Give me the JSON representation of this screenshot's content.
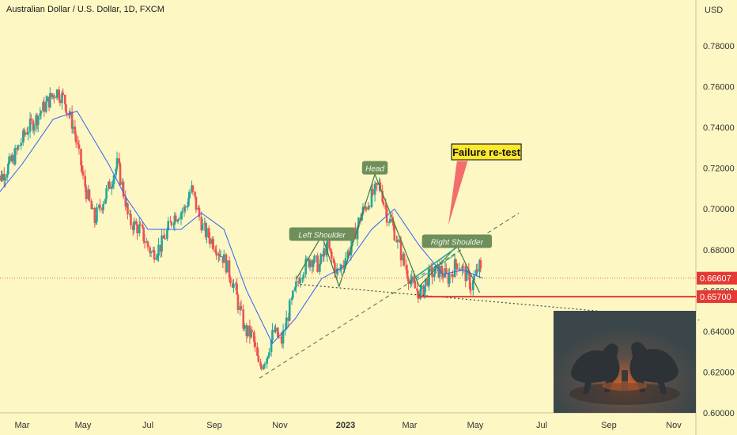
{
  "chart_title": "Australian Dollar / U.S. Dollar, 1D, FXCM",
  "currency_label": "USD",
  "chart_data": {
    "type": "candlestick",
    "title": "Australian Dollar / U.S. Dollar, 1D, FXCM",
    "ylabel": "USD",
    "ylim": [
      0.6,
      0.8
    ],
    "y_ticks": [
      "0.78000",
      "0.76000",
      "0.74000",
      "0.72000",
      "0.70000",
      "0.68000",
      "0.66000",
      "0.64000",
      "0.62000",
      "0.60000"
    ],
    "x_ticks": [
      "Mar",
      "May",
      "Jul",
      "Sep",
      "Nov",
      "2023",
      "Mar",
      "May",
      "Jul",
      "Sep",
      "Nov"
    ],
    "bold_x_tick": "2023",
    "x_tick_dates": [
      "2022-03-01",
      "2022-05-01",
      "2022-07-01",
      "2022-09-01",
      "2022-11-01",
      "2023-01-01",
      "2023-03-01",
      "2023-05-01",
      "2023-07-01",
      "2023-09-01",
      "2023-11-01"
    ],
    "price_path": [
      [
        "2022-02-01",
        0.712
      ],
      [
        "2022-02-12",
        0.718
      ],
      [
        "2022-02-22",
        0.726
      ],
      [
        "2022-03-05",
        0.738
      ],
      [
        "2022-03-15",
        0.744
      ],
      [
        "2022-03-26",
        0.752
      ],
      [
        "2022-04-05",
        0.758
      ],
      [
        "2022-04-12",
        0.754
      ],
      [
        "2022-04-22",
        0.74
      ],
      [
        "2022-05-02",
        0.714
      ],
      [
        "2022-05-12",
        0.694
      ],
      [
        "2022-05-22",
        0.706
      ],
      [
        "2022-06-03",
        0.722
      ],
      [
        "2022-06-14",
        0.694
      ],
      [
        "2022-06-24",
        0.69
      ],
      [
        "2022-07-05",
        0.678
      ],
      [
        "2022-07-14",
        0.682
      ],
      [
        "2022-07-25",
        0.696
      ],
      [
        "2022-08-05",
        0.7
      ],
      [
        "2022-08-11",
        0.71
      ],
      [
        "2022-08-22",
        0.69
      ],
      [
        "2022-08-31",
        0.684
      ],
      [
        "2022-09-10",
        0.676
      ],
      [
        "2022-09-20",
        0.662
      ],
      [
        "2022-09-30",
        0.64
      ],
      [
        "2022-10-07",
        0.638
      ],
      [
        "2022-10-13",
        0.622
      ],
      [
        "2022-10-20",
        0.628
      ],
      [
        "2022-10-27",
        0.64
      ],
      [
        "2022-11-03",
        0.634
      ],
      [
        "2022-11-10",
        0.65
      ],
      [
        "2022-11-20",
        0.668
      ],
      [
        "2022-11-30",
        0.676
      ],
      [
        "2022-12-08",
        0.672
      ],
      [
        "2022-12-15",
        0.682
      ],
      [
        "2022-12-25",
        0.668
      ],
      [
        "2023-01-05",
        0.68
      ],
      [
        "2023-01-15",
        0.696
      ],
      [
        "2023-01-25",
        0.706
      ],
      [
        "2023-02-02",
        0.712
      ],
      [
        "2023-02-08",
        0.698
      ],
      [
        "2023-02-15",
        0.69
      ],
      [
        "2023-02-25",
        0.672
      ],
      [
        "2023-03-05",
        0.662
      ],
      [
        "2023-03-12",
        0.658
      ],
      [
        "2023-03-20",
        0.668
      ],
      [
        "2023-03-30",
        0.67
      ],
      [
        "2023-04-06",
        0.666
      ],
      [
        "2023-04-14",
        0.674
      ],
      [
        "2023-04-20",
        0.67
      ],
      [
        "2023-04-28",
        0.662
      ],
      [
        "2023-05-05",
        0.672
      ],
      [
        "2023-05-08",
        0.666
      ]
    ],
    "moving_average": [
      [
        "2022-02-01",
        0.705
      ],
      [
        "2022-03-01",
        0.722
      ],
      [
        "2022-04-01",
        0.744
      ],
      [
        "2022-04-25",
        0.748
      ],
      [
        "2022-05-25",
        0.722
      ],
      [
        "2022-06-10",
        0.706
      ],
      [
        "2022-07-01",
        0.69
      ],
      [
        "2022-08-01",
        0.69
      ],
      [
        "2022-08-20",
        0.698
      ],
      [
        "2022-09-10",
        0.69
      ],
      [
        "2022-10-01",
        0.66
      ],
      [
        "2022-10-25",
        0.634
      ],
      [
        "2022-11-15",
        0.646
      ],
      [
        "2022-12-10",
        0.666
      ],
      [
        "2023-01-01",
        0.672
      ],
      [
        "2023-01-25",
        0.69
      ],
      [
        "2023-02-15",
        0.7
      ],
      [
        "2023-03-10",
        0.682
      ],
      [
        "2023-04-01",
        0.668
      ],
      [
        "2023-04-20",
        0.67
      ],
      [
        "2023-05-08",
        0.666
      ]
    ],
    "annotations": [
      {
        "text": "Left Shoulder",
        "date": "2022-12-10",
        "price": 0.6875
      },
      {
        "text": "Head",
        "date": "2023-01-28",
        "price": 0.72
      },
      {
        "text": "Right Shoulder",
        "date": "2023-04-14",
        "price": 0.684
      }
    ],
    "callout": {
      "text": "Failure re-test",
      "date": "2023-04-09",
      "price": 0.728
    },
    "price_lines": [
      {
        "label": "0.66607",
        "value": 0.66607
      },
      {
        "label": "0.65700",
        "value": 0.657
      }
    ],
    "colors": {
      "up": "#26a69a",
      "down": "#ef5350",
      "ma": "#2962ff",
      "support": "#e53935",
      "trendline": "#3a7a4a",
      "label_bg": "#6e8f5a",
      "callout_bg": "#fde82f",
      "arrow": "#f46c6c"
    }
  },
  "inset_image": {
    "description_icon": "bull-and-bear-icon"
  }
}
